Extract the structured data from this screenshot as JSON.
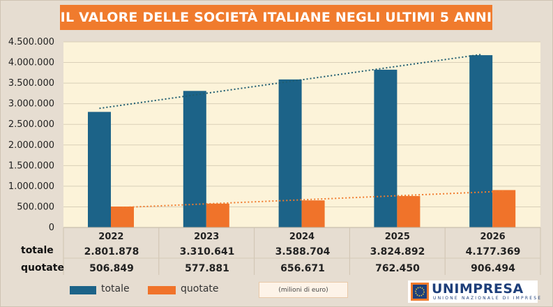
{
  "title": "IL VALORE DELLE SOCIETÀ ITALIANE NEGLI ULTIMI 5 ANNI",
  "colors": {
    "totale": "#1c6388",
    "quotate": "#f0732a",
    "plot_bg": "#fcf3d9",
    "banner": "#f07b2d",
    "trend_totale": "#1f5c70",
    "trend_quotate": "#f07b2d"
  },
  "chart_data": {
    "type": "bar",
    "title": "IL VALORE DELLE SOCIETÀ ITALIANE NEGLI ULTIMI 5 ANNI",
    "categories": [
      "2022",
      "2023",
      "2024",
      "2025",
      "2026"
    ],
    "series": [
      {
        "name": "totale",
        "values": [
          2801878,
          3310641,
          3588704,
          3824892,
          4177369
        ]
      },
      {
        "name": "quotate",
        "values": [
          506849,
          577881,
          656671,
          762450,
          906494
        ]
      }
    ],
    "ylim": [
      0,
      4500000
    ],
    "yticks": [
      "0",
      "500.000",
      "1.000.000",
      "1.500.000",
      "2.000.000",
      "2.500.000",
      "3.000.000",
      "3.500.000",
      "4.000.000",
      "4.500.000"
    ],
    "trendlines": "linear, dotted, one per series",
    "grid": true,
    "legend_position": "bottom-left"
  },
  "table": {
    "rows": [
      {
        "label": "totale",
        "values": [
          "2.801.878",
          "3.310.641",
          "3.588.704",
          "3.824.892",
          "4.177.369"
        ]
      },
      {
        "label": "quotate",
        "values": [
          "506.849",
          "577.881",
          "656.671",
          "762.450",
          "906.494"
        ]
      }
    ]
  },
  "legend": {
    "totale": "totale",
    "quotate": "quotate"
  },
  "units_note": "(milioni di euro)",
  "logo": {
    "name": "UNIMPRESA",
    "subtitle": "UNIONE NAZIONALE DI IMPRESE"
  }
}
